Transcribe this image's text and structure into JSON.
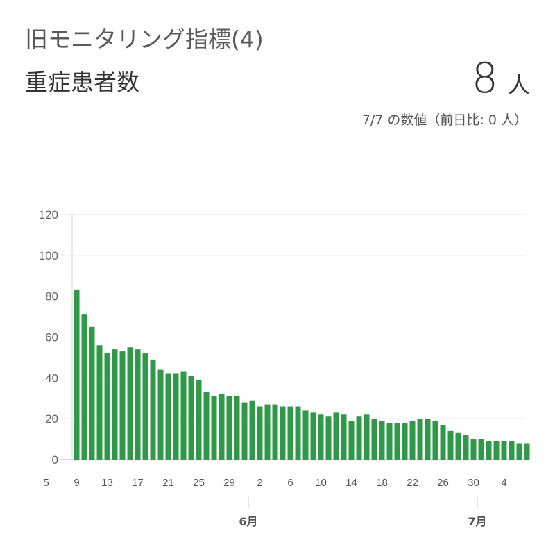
{
  "header": {
    "title": "旧モニタリング指標(4)",
    "subtitle": "重症患者数",
    "value": "8",
    "unit": "人",
    "note": "7/7 の数値（前日比: 0 人）"
  },
  "colors": {
    "bar": "#2e9a47",
    "grid": "#e0e0e0",
    "axis": "#cccccc"
  },
  "chart_data": {
    "type": "bar",
    "title": "",
    "xlabel": "",
    "ylabel": "",
    "ylim": [
      0,
      120
    ],
    "yticks": [
      "0",
      "20",
      "40",
      "60",
      "80",
      "100",
      "120"
    ],
    "grid": true,
    "legend": "none",
    "categories": [
      "5/9",
      "5/10",
      "5/11",
      "5/12",
      "5/13",
      "5/14",
      "5/15",
      "5/16",
      "5/17",
      "5/18",
      "5/19",
      "5/20",
      "5/21",
      "5/22",
      "5/23",
      "5/24",
      "5/25",
      "5/26",
      "5/27",
      "5/28",
      "5/29",
      "5/30",
      "5/31",
      "6/1",
      "6/2",
      "6/3",
      "6/4",
      "6/5",
      "6/6",
      "6/7",
      "6/8",
      "6/9",
      "6/10",
      "6/11",
      "6/12",
      "6/13",
      "6/14",
      "6/15",
      "6/16",
      "6/17",
      "6/18",
      "6/19",
      "6/20",
      "6/21",
      "6/22",
      "6/23",
      "6/24",
      "6/25",
      "6/26",
      "6/27",
      "6/28",
      "6/29",
      "6/30",
      "7/1",
      "7/2",
      "7/3",
      "7/4",
      "7/5",
      "7/6",
      "7/7"
    ],
    "values": [
      83,
      71,
      65,
      56,
      52,
      54,
      53,
      55,
      54,
      52,
      49,
      44,
      42,
      42,
      43,
      41,
      39,
      33,
      31,
      32,
      31,
      31,
      28,
      29,
      26,
      27,
      27,
      26,
      26,
      26,
      24,
      23,
      22,
      21,
      23,
      22,
      19,
      21,
      22,
      20,
      19,
      18,
      18,
      18,
      19,
      20,
      20,
      19,
      17,
      14,
      13,
      12,
      10,
      10,
      9,
      9,
      9,
      9,
      8,
      8
    ],
    "xtick_labels": [
      "5",
      "9",
      "13",
      "17",
      "21",
      "25",
      "29",
      "2",
      "6",
      "10",
      "14",
      "18",
      "22",
      "26",
      "30",
      "4"
    ],
    "month_labels": [
      "6月",
      "7月"
    ]
  }
}
